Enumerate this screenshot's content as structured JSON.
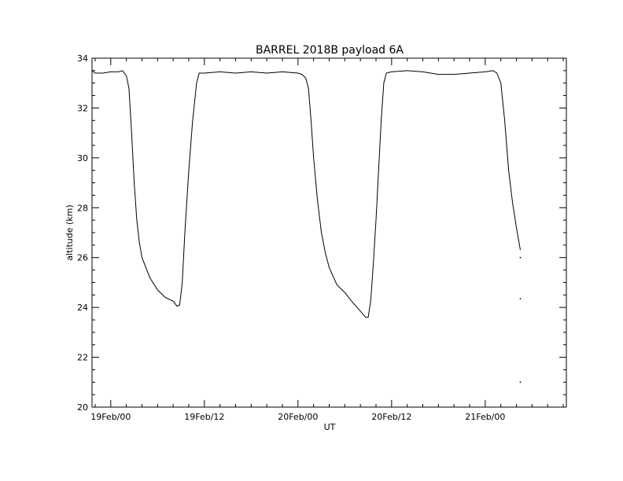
{
  "chart_data": {
    "type": "line",
    "title": "BARREL 2018B payload 6A",
    "xlabel": "UT",
    "ylabel": "altitude (km)",
    "x_unit": "UT (Feb 2018)",
    "xlim": [
      "18Feb 21:36",
      "21Feb 10:24"
    ],
    "ylim": [
      20,
      34
    ],
    "x_ticks": [
      {
        "t": "19Feb 00:00",
        "label": "19Feb/00"
      },
      {
        "t": "19Feb 12:00",
        "label": "19Feb/12"
      },
      {
        "t": "20Feb 00:00",
        "label": "20Feb/00"
      },
      {
        "t": "20Feb 12:00",
        "label": "20Feb/12"
      },
      {
        "t": "21Feb 00:00",
        "label": "21Feb/00"
      }
    ],
    "y_ticks": [
      20,
      22,
      24,
      26,
      28,
      30,
      32,
      34
    ],
    "grid": false,
    "series": [
      {
        "color": "#000000",
        "points": [
          [
            "18Feb 21:36",
            33.5
          ],
          [
            "18Feb 22:00",
            33.4
          ],
          [
            "18Feb 23:00",
            33.4
          ],
          [
            "19Feb 00:00",
            33.45
          ],
          [
            "19Feb 01:00",
            33.45
          ],
          [
            "19Feb 01:30",
            33.5
          ],
          [
            "19Feb 02:00",
            33.3
          ],
          [
            "19Feb 02:20",
            32.8
          ],
          [
            "19Feb 02:40",
            31.0
          ],
          [
            "19Feb 03:00",
            29.0
          ],
          [
            "19Feb 03:20",
            27.5
          ],
          [
            "19Feb 03:40",
            26.6
          ],
          [
            "19Feb 04:00",
            26.0
          ],
          [
            "19Feb 05:00",
            25.2
          ],
          [
            "19Feb 06:00",
            24.7
          ],
          [
            "19Feb 07:00",
            24.4
          ],
          [
            "19Feb 08:00",
            24.25
          ],
          [
            "19Feb 08:30",
            24.05
          ],
          [
            "19Feb 08:50",
            24.1
          ],
          [
            "19Feb 09:10",
            25.0
          ],
          [
            "19Feb 09:30",
            27.0
          ],
          [
            "19Feb 10:00",
            29.5
          ],
          [
            "19Feb 10:30",
            31.5
          ],
          [
            "19Feb 11:00",
            33.0
          ],
          [
            "19Feb 11:20",
            33.4
          ],
          [
            "19Feb 12:00",
            33.4
          ],
          [
            "19Feb 14:00",
            33.45
          ],
          [
            "19Feb 16:00",
            33.4
          ],
          [
            "19Feb 18:00",
            33.45
          ],
          [
            "19Feb 20:00",
            33.4
          ],
          [
            "19Feb 22:00",
            33.45
          ],
          [
            "20Feb 00:00",
            33.4
          ],
          [
            "20Feb 00:30",
            33.35
          ],
          [
            "20Feb 01:00",
            33.2
          ],
          [
            "20Feb 01:20",
            32.8
          ],
          [
            "20Feb 01:40",
            31.5
          ],
          [
            "20Feb 02:00",
            30.0
          ],
          [
            "20Feb 02:30",
            28.3
          ],
          [
            "20Feb 03:00",
            27.0
          ],
          [
            "20Feb 03:30",
            26.2
          ],
          [
            "20Feb 04:00",
            25.6
          ],
          [
            "20Feb 05:00",
            24.9
          ],
          [
            "20Feb 06:00",
            24.6
          ],
          [
            "20Feb 07:00",
            24.2
          ],
          [
            "20Feb 08:00",
            23.85
          ],
          [
            "20Feb 08:40",
            23.6
          ],
          [
            "20Feb 09:00",
            23.6
          ],
          [
            "20Feb 09:20",
            24.3
          ],
          [
            "20Feb 09:40",
            25.8
          ],
          [
            "20Feb 10:00",
            27.5
          ],
          [
            "20Feb 10:20",
            29.5
          ],
          [
            "20Feb 10:40",
            31.5
          ],
          [
            "20Feb 11:00",
            33.0
          ],
          [
            "20Feb 11:20",
            33.4
          ],
          [
            "20Feb 12:00",
            33.45
          ],
          [
            "20Feb 14:00",
            33.5
          ],
          [
            "20Feb 16:00",
            33.45
          ],
          [
            "20Feb 18:00",
            33.35
          ],
          [
            "20Feb 20:00",
            33.35
          ],
          [
            "20Feb 22:00",
            33.4
          ],
          [
            "21Feb 00:00",
            33.45
          ],
          [
            "21Feb 01:00",
            33.5
          ],
          [
            "21Feb 01:30",
            33.4
          ],
          [
            "21Feb 02:00",
            33.0
          ],
          [
            "21Feb 02:30",
            31.5
          ],
          [
            "21Feb 03:00",
            29.5
          ],
          [
            "21Feb 03:30",
            28.2
          ],
          [
            "21Feb 04:00",
            27.2
          ],
          [
            "21Feb 04:30",
            26.3
          ]
        ]
      }
    ],
    "outlier_points": [
      [
        "21Feb 04:30",
        26.0
      ],
      [
        "21Feb 04:30",
        24.35
      ],
      [
        "21Feb 04:30",
        21.0
      ]
    ]
  }
}
